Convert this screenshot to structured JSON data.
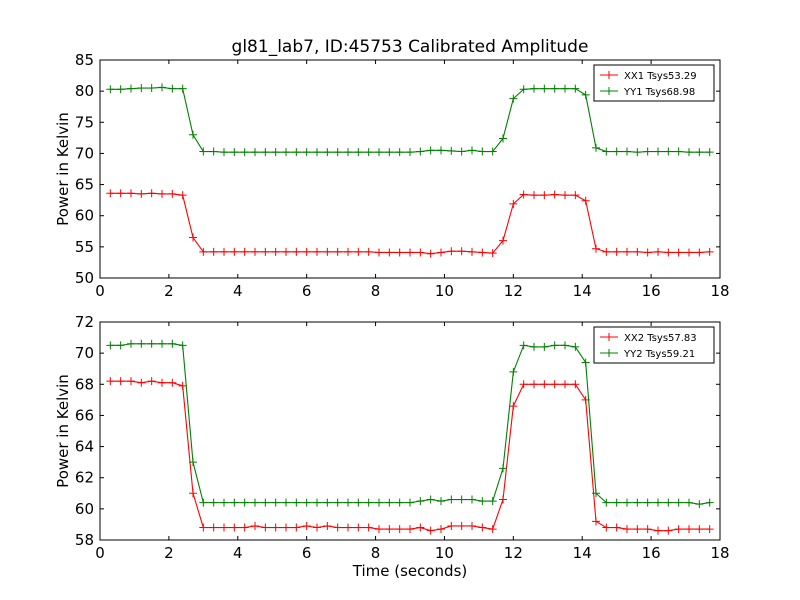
{
  "chart_data": [
    {
      "type": "line",
      "title": "gl81_lab7, ID:45753 Calibrated Amplitude",
      "xlabel": "",
      "ylabel": "Power in Kelvin",
      "xlim": [
        0,
        18
      ],
      "ylim": [
        50,
        85
      ],
      "xticks": [
        "0",
        "2",
        "4",
        "6",
        "8",
        "10",
        "12",
        "14",
        "16",
        "18"
      ],
      "yticks": [
        "50",
        "55",
        "60",
        "65",
        "70",
        "75",
        "80",
        "85"
      ],
      "legend": "top-right",
      "grid": false,
      "x": [
        0.3,
        0.6,
        0.9,
        1.2,
        1.5,
        1.8,
        2.1,
        2.4,
        2.7,
        3.0,
        3.3,
        3.6,
        3.9,
        4.2,
        4.5,
        4.8,
        5.1,
        5.4,
        5.7,
        6.0,
        6.3,
        6.6,
        6.9,
        7.2,
        7.5,
        7.8,
        8.1,
        8.4,
        8.7,
        9.0,
        9.3,
        9.6,
        9.9,
        10.2,
        10.5,
        10.8,
        11.1,
        11.4,
        11.7,
        12.0,
        12.3,
        12.6,
        12.9,
        13.2,
        13.5,
        13.8,
        14.1,
        14.4,
        14.7,
        15.0,
        15.3,
        15.6,
        15.9,
        16.2,
        16.5,
        16.8,
        17.1,
        17.4,
        17.7
      ],
      "series": [
        {
          "name": "XX1 Tsys53.29",
          "color": "#ff0000",
          "values": [
            63.6,
            63.6,
            63.6,
            63.5,
            63.6,
            63.5,
            63.5,
            63.3,
            56.5,
            54.2,
            54.2,
            54.2,
            54.2,
            54.2,
            54.2,
            54.2,
            54.2,
            54.2,
            54.2,
            54.2,
            54.2,
            54.2,
            54.2,
            54.2,
            54.2,
            54.2,
            54.1,
            54.1,
            54.1,
            54.1,
            54.1,
            53.9,
            54.1,
            54.3,
            54.3,
            54.2,
            54.1,
            54.0,
            56.0,
            61.9,
            63.4,
            63.3,
            63.3,
            63.4,
            63.3,
            63.3,
            62.4,
            54.7,
            54.2,
            54.2,
            54.2,
            54.2,
            54.1,
            54.2,
            54.1,
            54.1,
            54.1,
            54.1,
            54.2
          ]
        },
        {
          "name": "YY1 Tsys68.98",
          "color": "#008000",
          "values": [
            80.3,
            80.3,
            80.4,
            80.5,
            80.5,
            80.6,
            80.4,
            80.4,
            73.0,
            70.3,
            70.3,
            70.2,
            70.2,
            70.2,
            70.2,
            70.2,
            70.2,
            70.2,
            70.2,
            70.2,
            70.2,
            70.2,
            70.2,
            70.2,
            70.2,
            70.2,
            70.2,
            70.2,
            70.2,
            70.2,
            70.3,
            70.5,
            70.5,
            70.4,
            70.3,
            70.5,
            70.3,
            70.3,
            72.4,
            78.8,
            80.3,
            80.4,
            80.4,
            80.4,
            80.4,
            80.4,
            79.4,
            70.9,
            70.3,
            70.3,
            70.3,
            70.2,
            70.3,
            70.3,
            70.3,
            70.3,
            70.2,
            70.2,
            70.2
          ]
        }
      ]
    },
    {
      "type": "line",
      "title": "",
      "xlabel": "Time (seconds)",
      "ylabel": "Power in Kelvin",
      "xlim": [
        0,
        18
      ],
      "ylim": [
        58,
        72
      ],
      "xticks": [
        "0",
        "2",
        "4",
        "6",
        "8",
        "10",
        "12",
        "14",
        "16",
        "18"
      ],
      "yticks": [
        "58",
        "60",
        "62",
        "64",
        "66",
        "68",
        "70",
        "72"
      ],
      "legend": "top-right",
      "grid": false,
      "x": [
        0.3,
        0.6,
        0.9,
        1.2,
        1.5,
        1.8,
        2.1,
        2.4,
        2.7,
        3.0,
        3.3,
        3.6,
        3.9,
        4.2,
        4.5,
        4.8,
        5.1,
        5.4,
        5.7,
        6.0,
        6.3,
        6.6,
        6.9,
        7.2,
        7.5,
        7.8,
        8.1,
        8.4,
        8.7,
        9.0,
        9.3,
        9.6,
        9.9,
        10.2,
        10.5,
        10.8,
        11.1,
        11.4,
        11.7,
        12.0,
        12.3,
        12.6,
        12.9,
        13.2,
        13.5,
        13.8,
        14.1,
        14.4,
        14.7,
        15.0,
        15.3,
        15.6,
        15.9,
        16.2,
        16.5,
        16.8,
        17.1,
        17.4,
        17.7
      ],
      "series": [
        {
          "name": "XX2 Tsys57.83",
          "color": "#ff0000",
          "values": [
            68.2,
            68.2,
            68.2,
            68.1,
            68.2,
            68.1,
            68.1,
            67.9,
            61.0,
            58.8,
            58.8,
            58.8,
            58.8,
            58.8,
            58.9,
            58.8,
            58.8,
            58.8,
            58.8,
            58.9,
            58.8,
            58.9,
            58.8,
            58.8,
            58.8,
            58.8,
            58.7,
            58.7,
            58.7,
            58.7,
            58.8,
            58.6,
            58.7,
            58.9,
            58.9,
            58.9,
            58.8,
            58.7,
            60.6,
            66.6,
            68.0,
            68.0,
            68.0,
            68.0,
            68.0,
            68.0,
            67.0,
            59.2,
            58.8,
            58.8,
            58.7,
            58.7,
            58.7,
            58.6,
            58.6,
            58.7,
            58.7,
            58.7,
            58.7
          ]
        },
        {
          "name": "YY2 Tsys59.21",
          "color": "#008000",
          "values": [
            70.5,
            70.5,
            70.6,
            70.6,
            70.6,
            70.6,
            70.6,
            70.5,
            63.0,
            60.4,
            60.4,
            60.4,
            60.4,
            60.4,
            60.4,
            60.4,
            60.4,
            60.4,
            60.4,
            60.4,
            60.4,
            60.4,
            60.4,
            60.4,
            60.4,
            60.4,
            60.4,
            60.4,
            60.4,
            60.4,
            60.5,
            60.6,
            60.5,
            60.6,
            60.6,
            60.6,
            60.5,
            60.5,
            62.6,
            68.8,
            70.5,
            70.4,
            70.4,
            70.5,
            70.5,
            70.4,
            69.4,
            61.0,
            60.4,
            60.4,
            60.4,
            60.4,
            60.4,
            60.4,
            60.4,
            60.4,
            60.4,
            60.3,
            60.4
          ]
        }
      ]
    }
  ]
}
